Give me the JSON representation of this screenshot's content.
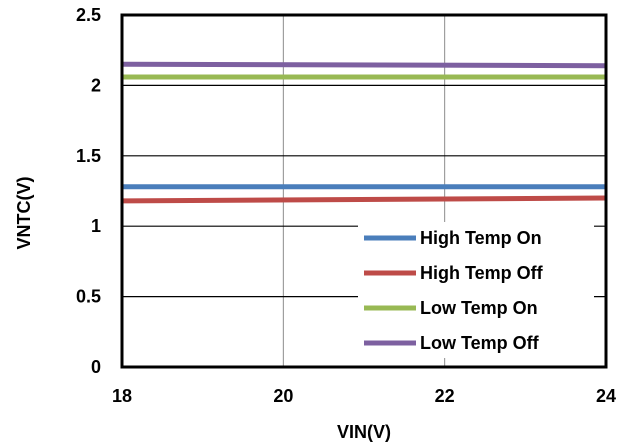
{
  "chart_data": {
    "type": "line",
    "title": "",
    "xlabel": "VIN(V)",
    "ylabel": "VNTC(V)",
    "xlim": [
      18,
      24
    ],
    "ylim": [
      0,
      2.5
    ],
    "x_ticks": [
      "18",
      "20",
      "22",
      "24"
    ],
    "y_ticks": [
      "0",
      "0.5",
      "1",
      "1.5",
      "2",
      "2.5"
    ],
    "grid": {
      "horizontal": true,
      "vertical": true
    },
    "legend_position": "bottom-right",
    "series": [
      {
        "name": "High Temp On",
        "color": "#4A7EBB",
        "x": [
          18,
          24
        ],
        "y": [
          1.28,
          1.28
        ]
      },
      {
        "name": "High Temp Off",
        "color": "#BE4B48",
        "x": [
          18,
          24
        ],
        "y": [
          1.18,
          1.2
        ]
      },
      {
        "name": "Low Temp On",
        "color": "#98B954",
        "x": [
          18,
          24
        ],
        "y": [
          2.06,
          2.06
        ]
      },
      {
        "name": "Low Temp Off",
        "color": "#7D60A0",
        "x": [
          18,
          24
        ],
        "y": [
          2.15,
          2.14
        ]
      }
    ]
  }
}
